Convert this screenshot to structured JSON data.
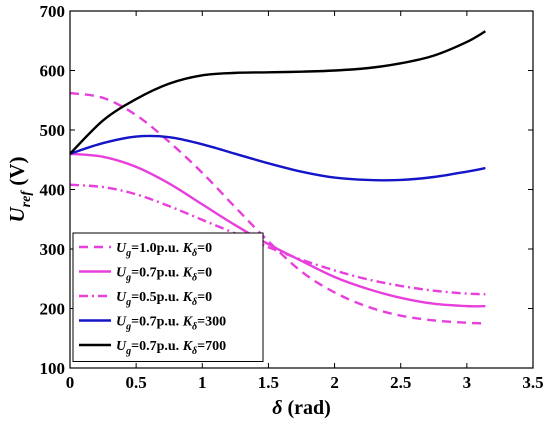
{
  "chart_data": {
    "type": "line",
    "title": "",
    "xlabel": {
      "symbol": "δ",
      "unit": " (rad)"
    },
    "ylabel": {
      "symbol": "U",
      "sub": "ref",
      "unit": " (V)"
    },
    "xlim": [
      0,
      3.5
    ],
    "ylim": [
      100,
      700
    ],
    "xticks": [
      0,
      0.5,
      1,
      1.5,
      2,
      2.5,
      3,
      3.5
    ],
    "xtick_labels": [
      "0",
      "0.5",
      "1",
      "1.5",
      "2",
      "2.5",
      "3",
      "3.5"
    ],
    "yticks": [
      100,
      200,
      300,
      400,
      500,
      600,
      700
    ],
    "ytick_labels": [
      "100",
      "200",
      "300",
      "400",
      "500",
      "600",
      "700"
    ],
    "grid": false,
    "legend_position": "bottom-left",
    "x": [
      0,
      0.25,
      0.5,
      0.75,
      1.0,
      1.25,
      1.5,
      1.75,
      2.0,
      2.25,
      2.5,
      2.75,
      3.0,
      3.14
    ],
    "series": [
      {
        "legend": {
          "sym": "U",
          "sub": "g",
          "mid": "=1.0p.u. ",
          "sym2": "K",
          "sub2": "δ",
          "tail": "=0"
        },
        "color": "#e83fdc",
        "dash": "dash",
        "values": [
          562,
          554,
          525,
          480,
          428,
          370,
          313,
          262,
          227,
          203,
          188,
          180,
          176,
          175
        ]
      },
      {
        "legend": {
          "sym": "U",
          "sub": "g",
          "mid": "=0.7p.u. ",
          "sym2": "K",
          "sub2": "δ",
          "tail": "=0"
        },
        "color": "#e83fdc",
        "dash": "solid",
        "values": [
          460,
          455,
          438,
          410,
          375,
          340,
          308,
          280,
          253,
          233,
          218,
          208,
          204,
          204
        ]
      },
      {
        "legend": {
          "sym": "U",
          "sub": "g",
          "mid": "=0.5p.u. ",
          "sym2": "K",
          "sub2": "δ",
          "tail": "=0"
        },
        "color": "#e83fdc",
        "dash": "dashdot",
        "values": [
          408,
          404,
          392,
          372,
          349,
          326,
          303,
          282,
          264,
          249,
          238,
          230,
          225,
          224
        ]
      },
      {
        "legend": {
          "sym": "U",
          "sub": "g",
          "mid": "=0.7p.u. ",
          "sym2": "K",
          "sub2": "δ",
          "tail": "=300"
        },
        "color": "#1414c8",
        "dash": "solid",
        "values": [
          460,
          478,
          489,
          488,
          476,
          460,
          444,
          430,
          420,
          416,
          416,
          421,
          430,
          436
        ]
      },
      {
        "legend": {
          "sym": "U",
          "sub": "g",
          "mid": "=0.7p.u. ",
          "sym2": "K",
          "sub2": "δ",
          "tail": "=700"
        },
        "color": "#000000",
        "dash": "solid",
        "values": [
          460,
          516,
          552,
          578,
          592,
          596,
          597,
          598,
          600,
          604,
          612,
          625,
          648,
          666
        ]
      }
    ]
  }
}
